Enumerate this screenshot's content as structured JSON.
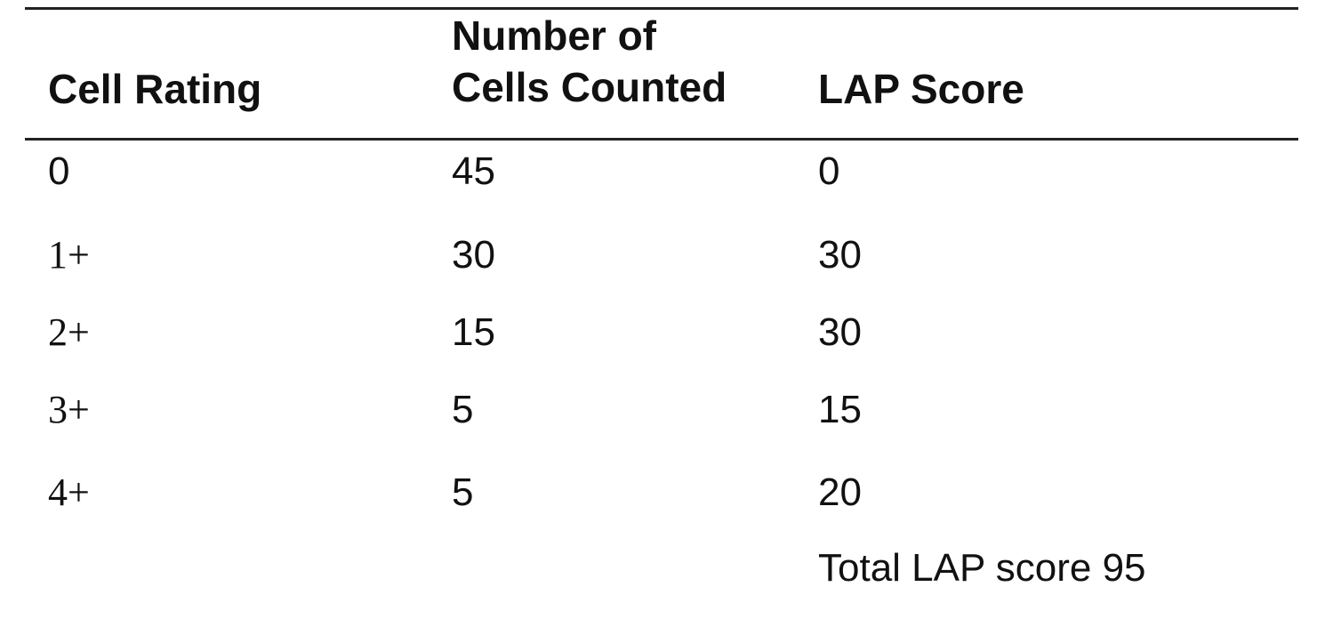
{
  "table": {
    "headers": {
      "cell_rating": "Cell Rating",
      "cells_counted_line1": "Number of",
      "cells_counted_line2": "Cells Counted",
      "lap_score": "LAP Score"
    },
    "rows": [
      {
        "rating": "0",
        "count": "45",
        "score": "0"
      },
      {
        "rating": "1+",
        "count": "30",
        "score": "30"
      },
      {
        "rating": "2+",
        "count": "15",
        "score": "30"
      },
      {
        "rating": "3+",
        "count": "5",
        "score": "15"
      },
      {
        "rating": "4+",
        "count": "5",
        "score": "20"
      }
    ],
    "total": "Total LAP score 95"
  }
}
